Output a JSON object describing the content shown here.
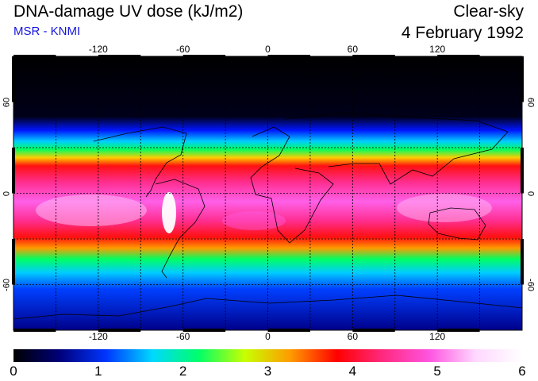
{
  "header": {
    "title": "DNA-damage UV dose (kJ/m2)",
    "credit": "MSR - KNMI",
    "sky": "Clear-sky",
    "date": "4 February 1992"
  },
  "map": {
    "lon_range": [
      -180,
      180
    ],
    "lat_range": [
      -90,
      90
    ],
    "lon_ticks": [
      -120,
      -60,
      0,
      60,
      120
    ],
    "lon_tick_labels": [
      "-120",
      "-60",
      "0",
      "60",
      "120"
    ],
    "lat_ticks": [
      60,
      0,
      -60
    ],
    "lat_tick_labels": [
      "60",
      "0",
      "-60"
    ],
    "right_lat_tick_labels": [
      "60",
      "0",
      "-60"
    ],
    "grid_lon_step": 30,
    "grid_lat_step": 30
  },
  "colorbar": {
    "min": 0,
    "max": 6,
    "tick_labels": [
      "0",
      "1",
      "2",
      "3",
      "4",
      "5",
      "6"
    ],
    "colors": [
      "#000000",
      "#00007a",
      "#0036ff",
      "#00d8ff",
      "#00ff6a",
      "#c8ff00",
      "#ff9a00",
      "#ff0000",
      "#ff2a80",
      "#ff55e0",
      "#ffd8ff",
      "#ffffff"
    ]
  }
}
